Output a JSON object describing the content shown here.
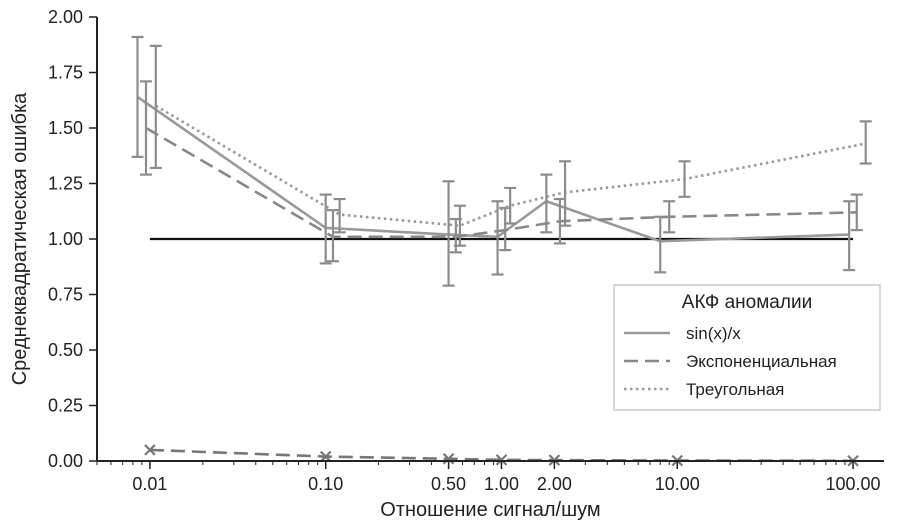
{
  "chart_data": {
    "type": "line",
    "xlabel": "Отношение сигнал/шум",
    "ylabel": "Среднеквадратическая ошибка",
    "x_scale": "log",
    "xlim": [
      0.005,
      150
    ],
    "ylim": [
      0,
      2.0
    ],
    "x_ticks": [
      0.01,
      0.1,
      0.5,
      1,
      2,
      10,
      100
    ],
    "x_tick_labels": [
      "0.01",
      "0.10",
      "0.50",
      "1.00",
      "2.00",
      "10.00",
      "100.00"
    ],
    "y_ticks": [
      0,
      0.25,
      0.5,
      0.75,
      1.0,
      1.25,
      1.5,
      1.75,
      2.0
    ],
    "y_tick_labels": [
      "0.00",
      "0.25",
      "0.50",
      "0.75",
      "1.00",
      "1.25",
      "1.50",
      "1.75",
      "2.00"
    ],
    "reference_line": {
      "y": 1.0,
      "color": "#111111"
    },
    "legend": {
      "title": "АКФ аномалии",
      "placement": "lower-right"
    },
    "grid": false,
    "series": [
      {
        "name": "sin(x)/x",
        "style": "solid",
        "color": "#999999",
        "points": [
          {
            "x": 0.0085,
            "y": 1.64,
            "err_low": 1.37,
            "err_high": 1.91
          },
          {
            "x": 0.1,
            "y": 1.05,
            "err_low": 0.89,
            "err_high": 1.2
          },
          {
            "x": 0.5,
            "y": 1.02,
            "err_low": 0.79,
            "err_high": 1.26
          },
          {
            "x": 0.95,
            "y": 1.01,
            "err_low": 0.84,
            "err_high": 1.17
          },
          {
            "x": 1.8,
            "y": 1.17,
            "err_low": 1.03,
            "err_high": 1.29
          },
          {
            "x": 8.0,
            "y": 0.99,
            "err_low": 0.85,
            "err_high": 1.1
          },
          {
            "x": 95,
            "y": 1.02,
            "err_low": 0.86,
            "err_high": 1.17
          }
        ]
      },
      {
        "name": "Экспоненциальная",
        "style": "dashed",
        "color": "#888888",
        "points": [
          {
            "x": 0.0095,
            "y": 1.5,
            "err_low": 1.29,
            "err_high": 1.71
          },
          {
            "x": 0.11,
            "y": 1.01,
            "err_low": 0.9,
            "err_high": 1.13
          },
          {
            "x": 0.55,
            "y": 1.01,
            "err_low": 0.94,
            "err_high": 1.09
          },
          {
            "x": 1.05,
            "y": 1.04,
            "err_low": 0.95,
            "err_high": 1.14
          },
          {
            "x": 2.15,
            "y": 1.08,
            "err_low": 0.98,
            "err_high": 1.18
          },
          {
            "x": 9.0,
            "y": 1.1,
            "err_low": 1.03,
            "err_high": 1.17
          },
          {
            "x": 105,
            "y": 1.12,
            "err_low": 1.04,
            "err_high": 1.2
          }
        ]
      },
      {
        "name": "Треугольная",
        "style": "dotted",
        "color": "#999999",
        "points": [
          {
            "x": 0.0108,
            "y": 1.6,
            "err_low": 1.32,
            "err_high": 1.87
          },
          {
            "x": 0.12,
            "y": 1.11,
            "err_low": 1.03,
            "err_high": 1.18
          },
          {
            "x": 0.58,
            "y": 1.06,
            "err_low": 0.97,
            "err_high": 1.15
          },
          {
            "x": 1.12,
            "y": 1.15,
            "err_low": 1.07,
            "err_high": 1.23
          },
          {
            "x": 2.3,
            "y": 1.21,
            "err_low": 1.06,
            "err_high": 1.35
          },
          {
            "x": 11.0,
            "y": 1.27,
            "err_low": 1.19,
            "err_high": 1.35
          },
          {
            "x": 118,
            "y": 1.43,
            "err_low": 1.34,
            "err_high": 1.53
          }
        ]
      },
      {
        "style": "dashed",
        "marker": "x",
        "color": "#777777",
        "points": [
          {
            "x": 0.01,
            "y": 0.05
          },
          {
            "x": 0.1,
            "y": 0.02
          },
          {
            "x": 0.5,
            "y": 0.01
          },
          {
            "x": 1.0,
            "y": 0.005
          },
          {
            "x": 2.0,
            "y": 0.004
          },
          {
            "x": 10,
            "y": 0.002
          },
          {
            "x": 100,
            "y": 0.001
          }
        ]
      }
    ]
  }
}
